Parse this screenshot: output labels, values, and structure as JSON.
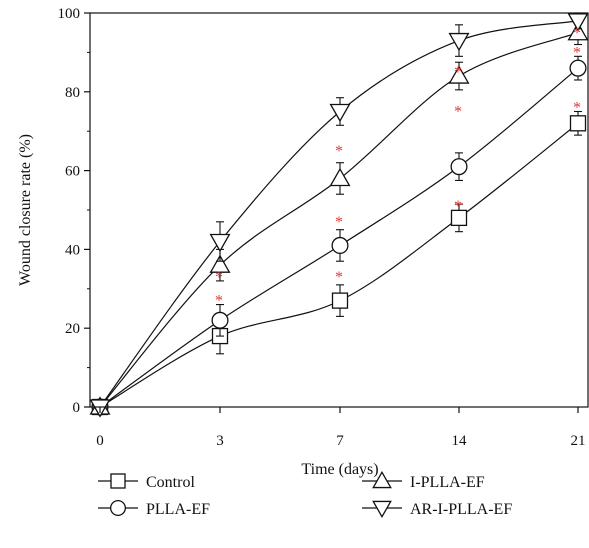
{
  "chart_data": {
    "type": "line",
    "xlabel": "Time (days)",
    "ylabel": "Wound closure rate (%)",
    "categories": [
      "0",
      "3",
      "7",
      "14",
      "21"
    ],
    "ylim": [
      0,
      100
    ],
    "yticks": [
      "0",
      "20",
      "40",
      "60",
      "80",
      "100"
    ],
    "grid": false,
    "legend_position": "bottom",
    "significance_marker": "*",
    "significance_color": "#e53935",
    "series": [
      {
        "name": "Control",
        "marker": "square",
        "values": [
          0,
          18,
          27,
          48,
          72
        ],
        "errors": [
          0,
          4.5,
          4,
          3.5,
          3
        ]
      },
      {
        "name": "PLLA-EF",
        "marker": "circle",
        "values": [
          0,
          22,
          41,
          61,
          86
        ],
        "errors": [
          0,
          4,
          4,
          3.5,
          3
        ]
      },
      {
        "name": "I-PLLA-EF",
        "marker": "triangle-up",
        "values": [
          0,
          36,
          58,
          84,
          95
        ],
        "errors": [
          0,
          4,
          4,
          3.5,
          3
        ]
      },
      {
        "name": "AR-I-PLLA-EF",
        "marker": "triangle-down",
        "values": [
          0,
          42,
          75,
          93,
          98
        ],
        "errors": [
          0,
          5,
          3.5,
          4,
          2
        ]
      }
    ],
    "significance": [
      {
        "category": "3",
        "value": 34
      },
      {
        "category": "3",
        "value": 28
      },
      {
        "category": "7",
        "value": 66
      },
      {
        "category": "7",
        "value": 48
      },
      {
        "category": "7",
        "value": 34
      },
      {
        "category": "14",
        "value": 86
      },
      {
        "category": "14",
        "value": 76
      },
      {
        "category": "14",
        "value": 52
      },
      {
        "category": "21",
        "value": 96
      },
      {
        "category": "21",
        "value": 91
      },
      {
        "category": "21",
        "value": 77
      }
    ]
  }
}
